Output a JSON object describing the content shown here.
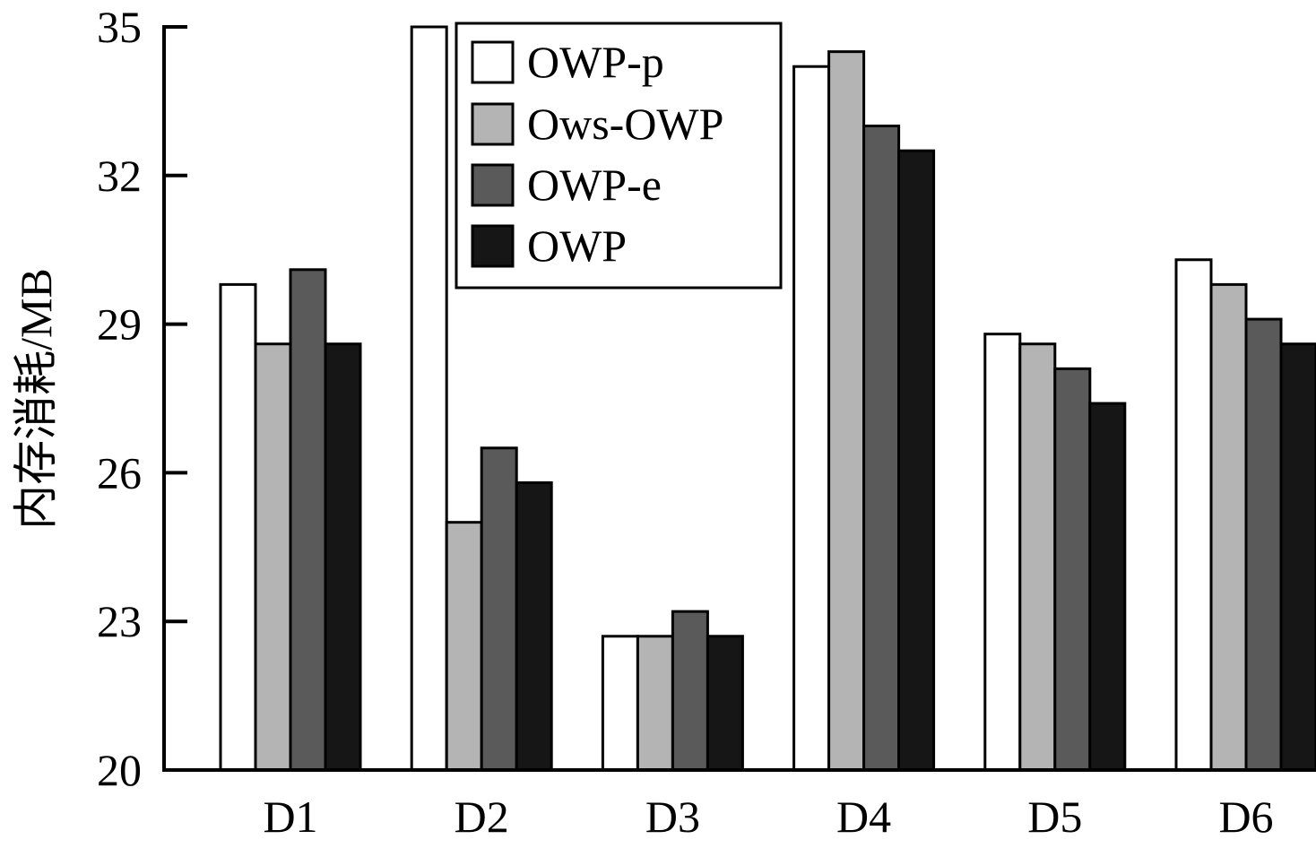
{
  "chart_data": {
    "type": "bar",
    "title": "",
    "xlabel": "",
    "ylabel": "内存消耗/MB",
    "ylim": [
      20,
      35
    ],
    "yticks": [
      20,
      23,
      26,
      29,
      32,
      35
    ],
    "grid": false,
    "legend_position": "top-center",
    "categories": [
      "D1",
      "D2",
      "D3",
      "D4",
      "D5",
      "D6"
    ],
    "series": [
      {
        "name": "OWP-p",
        "color": "#ffffff",
        "values": [
          29.8,
          35.0,
          22.7,
          34.2,
          28.8,
          30.3
        ]
      },
      {
        "name": "Ows-OWP",
        "color": "#b4b4b4",
        "values": [
          28.6,
          25.0,
          22.7,
          34.5,
          28.6,
          29.8
        ]
      },
      {
        "name": "OWP-e",
        "color": "#5a5a5a",
        "values": [
          30.1,
          26.5,
          23.2,
          33.0,
          28.1,
          29.1
        ]
      },
      {
        "name": "OWP",
        "color": "#161616",
        "values": [
          28.6,
          25.8,
          22.7,
          32.5,
          27.4,
          28.6
        ]
      }
    ]
  }
}
